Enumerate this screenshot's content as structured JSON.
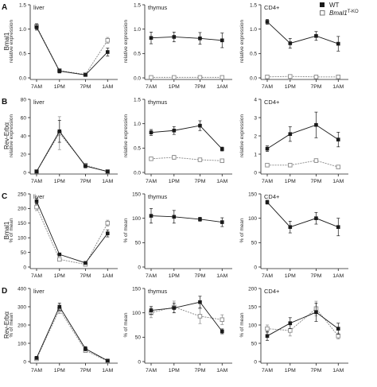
{
  "legend": {
    "placement": "top-right",
    "entries": [
      {
        "label": "WT",
        "marker": "filled-square"
      },
      {
        "label": "Bmal1",
        "superscript": "T-KO",
        "marker": "open-square"
      }
    ]
  },
  "colors": {
    "wt": "#1a1a1a",
    "ko": "#888888",
    "axis": "#222222"
  },
  "chart_data": [
    {
      "type": "line",
      "panel": "A",
      "tissue": "liver",
      "ylabel": "Bmal1",
      "yaxis_title": "relative expression",
      "categories": [
        "7AM",
        "1PM",
        "7PM",
        "1AM"
      ],
      "ylim": [
        0,
        1.5
      ],
      "yticks": [
        "0.0",
        "0.5",
        "1.0",
        "1.5"
      ],
      "series": [
        {
          "name": "WT",
          "values": [
            1.04,
            0.14,
            0.06,
            0.53
          ],
          "errors": [
            0.06,
            0.04,
            0.02,
            0.08
          ]
        },
        {
          "name": "Bmal1 T-KO",
          "values": [
            1.06,
            0.15,
            0.07,
            0.77
          ],
          "errors": [
            0.06,
            0.04,
            0.02,
            0.06
          ]
        }
      ]
    },
    {
      "type": "line",
      "panel": "A",
      "tissue": "thymus",
      "ylabel": "",
      "yaxis_title": "relative expression",
      "categories": [
        "7AM",
        "1PM",
        "7PM",
        "1AM"
      ],
      "ylim": [
        0,
        1.5
      ],
      "yticks": [
        "0.0",
        "0.5",
        "1.0",
        "1.5"
      ],
      "series": [
        {
          "name": "WT",
          "values": [
            0.82,
            0.84,
            0.81,
            0.77
          ],
          "errors": [
            0.12,
            0.1,
            0.12,
            0.15
          ]
        },
        {
          "name": "Bmal1 T-KO",
          "values": [
            0.01,
            0.01,
            0.01,
            0.01
          ],
          "errors": [
            0.01,
            0.01,
            0.01,
            0.01
          ]
        }
      ]
    },
    {
      "type": "line",
      "panel": "A",
      "tissue": "CD4+",
      "ylabel": "",
      "yaxis_title": "relative expression",
      "categories": [
        "7AM",
        "1PM",
        "7PM",
        "1AM"
      ],
      "ylim": [
        0,
        1.5
      ],
      "yticks": [
        "0.0",
        "0.5",
        "1.0",
        "1.5"
      ],
      "series": [
        {
          "name": "WT",
          "values": [
            1.15,
            0.71,
            0.86,
            0.7
          ],
          "errors": [
            0.05,
            0.1,
            0.09,
            0.15
          ]
        },
        {
          "name": "Bmal1 T-KO",
          "values": [
            0.02,
            0.03,
            0.02,
            0.02
          ],
          "errors": [
            0.01,
            0.02,
            0.01,
            0.01
          ]
        }
      ]
    },
    {
      "type": "line",
      "panel": "B",
      "tissue": "liver",
      "ylabel": "Rev-Erbα",
      "yaxis_title": "relative expression",
      "categories": [
        "7AM",
        "1PM",
        "7PM",
        "1AM"
      ],
      "ylim": [
        0,
        80
      ],
      "yticks": [
        "0",
        "20",
        "40",
        "60",
        "80"
      ],
      "series": [
        {
          "name": "WT",
          "values": [
            1,
            45,
            7,
            1
          ],
          "errors": [
            0.5,
            12,
            2,
            0.5
          ]
        },
        {
          "name": "Bmal1 T-KO",
          "values": [
            1,
            43,
            8,
            1
          ],
          "errors": [
            0.5,
            18,
            2,
            0.5
          ]
        }
      ]
    },
    {
      "type": "line",
      "panel": "B",
      "tissue": "thymus",
      "ylabel": "",
      "yaxis_title": "relative expression",
      "categories": [
        "7AM",
        "1PM",
        "7PM",
        "1AM"
      ],
      "ylim": [
        0,
        1.5
      ],
      "yticks": [
        "0.0",
        "0.5",
        "1.0",
        "1.5"
      ],
      "series": [
        {
          "name": "WT",
          "values": [
            0.82,
            0.86,
            0.96,
            0.48
          ],
          "errors": [
            0.06,
            0.08,
            0.1,
            0.04
          ]
        },
        {
          "name": "Bmal1 T-KO",
          "values": [
            0.28,
            0.31,
            0.26,
            0.24
          ],
          "errors": [
            0.02,
            0.04,
            0.03,
            0.02
          ]
        }
      ]
    },
    {
      "type": "line",
      "panel": "B",
      "tissue": "CD4+",
      "ylabel": "",
      "yaxis_title": "relative expression",
      "categories": [
        "7AM",
        "1PM",
        "7PM",
        "1AM"
      ],
      "ylim": [
        0,
        4
      ],
      "yticks": [
        "0",
        "1",
        "2",
        "3",
        "4"
      ],
      "series": [
        {
          "name": "WT",
          "values": [
            1.3,
            2.1,
            2.6,
            1.8
          ],
          "errors": [
            0.15,
            0.4,
            0.7,
            0.4
          ]
        },
        {
          "name": "Bmal1 T-KO",
          "values": [
            0.4,
            0.4,
            0.65,
            0.3
          ],
          "errors": [
            0.05,
            0.08,
            0.1,
            0.06
          ]
        }
      ]
    },
    {
      "type": "line",
      "panel": "C",
      "tissue": "liver",
      "ylabel": "Bmal1",
      "yaxis_title": "% of mean",
      "categories": [
        "7AM",
        "1PM",
        "7PM",
        "1AM"
      ],
      "ylim": [
        0,
        250
      ],
      "yticks": [
        "0",
        "50",
        "100",
        "150",
        "200",
        "250"
      ],
      "series": [
        {
          "name": "WT",
          "values": [
            225,
            43,
            14,
            115
          ],
          "errors": [
            10,
            5,
            3,
            12
          ]
        },
        {
          "name": "Bmal1 T-KO",
          "values": [
            205,
            26,
            9,
            150
          ],
          "errors": [
            12,
            4,
            2,
            10
          ]
        }
      ]
    },
    {
      "type": "line",
      "panel": "C",
      "tissue": "thymus",
      "ylabel": "",
      "yaxis_title": "% of mean",
      "categories": [
        "7AM",
        "1PM",
        "7PM",
        "1AM"
      ],
      "ylim": [
        0,
        150
      ],
      "yticks": [
        "0",
        "50",
        "100",
        "150"
      ],
      "series": [
        {
          "name": "WT",
          "values": [
            105,
            103,
            98,
            92
          ],
          "errors": [
            15,
            13,
            4,
            9
          ]
        }
      ]
    },
    {
      "type": "line",
      "panel": "C",
      "tissue": "CD4+",
      "ylabel": "",
      "yaxis_title": "% of mean",
      "categories": [
        "7AM",
        "1PM",
        "7PM",
        "1AM"
      ],
      "ylim": [
        0,
        150
      ],
      "yticks": [
        "0",
        "50",
        "100",
        "150"
      ],
      "series": [
        {
          "name": "WT",
          "values": [
            133,
            82,
            100,
            82
          ],
          "errors": [
            4,
            12,
            12,
            18
          ]
        }
      ]
    },
    {
      "type": "line",
      "panel": "D",
      "tissue": "liver",
      "ylabel": "Rev-Erbα",
      "yaxis_title": "% of mean",
      "categories": [
        "7AM",
        "1PM",
        "7PM",
        "1AM"
      ],
      "ylim": [
        0,
        400
      ],
      "yticks": [
        "0",
        "100",
        "200",
        "300",
        "400"
      ],
      "series": [
        {
          "name": "WT",
          "values": [
            20,
            300,
            70,
            5
          ],
          "errors": [
            8,
            20,
            12,
            3
          ]
        },
        {
          "name": "Bmal1 T-KO",
          "values": [
            15,
            285,
            60,
            3
          ],
          "errors": [
            6,
            22,
            10,
            2
          ]
        }
      ]
    },
    {
      "type": "line",
      "panel": "D",
      "tissue": "thymus",
      "ylabel": "",
      "yaxis_title": "% of mean",
      "categories": [
        "7AM",
        "1PM",
        "7PM",
        "1AM"
      ],
      "ylim": [
        0,
        150
      ],
      "yticks": [
        "0",
        "50",
        "100",
        "150"
      ],
      "series": [
        {
          "name": "WT",
          "values": [
            105,
            110,
            122,
            62
          ],
          "errors": [
            8,
            10,
            12,
            5
          ]
        },
        {
          "name": "Bmal1 T-KO",
          "values": [
            100,
            112,
            93,
            86
          ],
          "errors": [
            10,
            12,
            15,
            10
          ]
        }
      ]
    },
    {
      "type": "line",
      "panel": "D",
      "tissue": "CD4+",
      "ylabel": "",
      "yaxis_title": "% of mean",
      "categories": [
        "7AM",
        "1PM",
        "7PM",
        "1AM"
      ],
      "ylim": [
        0,
        200
      ],
      "yticks": [
        "0",
        "50",
        "100",
        "150",
        "200"
      ],
      "series": [
        {
          "name": "WT",
          "values": [
            70,
            105,
            135,
            90
          ],
          "errors": [
            12,
            15,
            25,
            15
          ]
        },
        {
          "name": "Bmal1 T-KO",
          "values": [
            90,
            85,
            145,
            70
          ],
          "errors": [
            10,
            15,
            20,
            8
          ]
        }
      ]
    }
  ]
}
